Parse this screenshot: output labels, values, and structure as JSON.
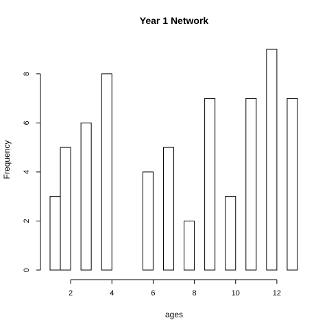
{
  "chart_data": {
    "type": "bar",
    "title": "Year 1 Network",
    "xlabel": "ages",
    "ylabel": "Frequency",
    "bins": [
      {
        "start": 1.0,
        "end": 1.5,
        "count": 3
      },
      {
        "start": 1.5,
        "end": 2.0,
        "count": 5
      },
      {
        "start": 2.0,
        "end": 2.5,
        "count": 0
      },
      {
        "start": 2.5,
        "end": 3.0,
        "count": 6
      },
      {
        "start": 3.0,
        "end": 3.5,
        "count": 0
      },
      {
        "start": 3.5,
        "end": 4.0,
        "count": 8
      },
      {
        "start": 4.0,
        "end": 4.5,
        "count": 0
      },
      {
        "start": 4.5,
        "end": 5.0,
        "count": 0
      },
      {
        "start": 5.0,
        "end": 5.5,
        "count": 0
      },
      {
        "start": 5.5,
        "end": 6.0,
        "count": 4
      },
      {
        "start": 6.0,
        "end": 6.5,
        "count": 0
      },
      {
        "start": 6.5,
        "end": 7.0,
        "count": 5
      },
      {
        "start": 7.0,
        "end": 7.5,
        "count": 0
      },
      {
        "start": 7.5,
        "end": 8.0,
        "count": 2
      },
      {
        "start": 8.0,
        "end": 8.5,
        "count": 0
      },
      {
        "start": 8.5,
        "end": 9.0,
        "count": 7
      },
      {
        "start": 9.0,
        "end": 9.5,
        "count": 0
      },
      {
        "start": 9.5,
        "end": 10.0,
        "count": 3
      },
      {
        "start": 10.0,
        "end": 10.5,
        "count": 0
      },
      {
        "start": 10.5,
        "end": 11.0,
        "count": 7
      },
      {
        "start": 11.0,
        "end": 11.5,
        "count": 0
      },
      {
        "start": 11.5,
        "end": 12.0,
        "count": 9
      },
      {
        "start": 12.0,
        "end": 12.5,
        "count": 0
      },
      {
        "start": 12.5,
        "end": 13.0,
        "count": 7
      }
    ],
    "xlim": [
      1,
      13
    ],
    "ylim": [
      0,
      9
    ],
    "x_ticks": [
      2,
      4,
      6,
      8,
      10,
      12
    ],
    "y_ticks": [
      0,
      2,
      4,
      6,
      8
    ],
    "grid": false
  }
}
